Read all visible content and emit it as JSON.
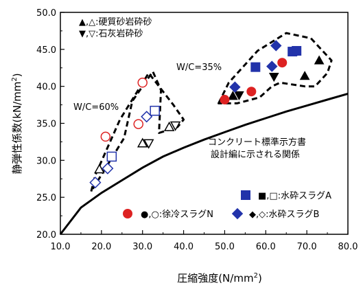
{
  "chart_data": {
    "type": "scatter",
    "xlabel": "圧縮強度(N/mm",
    "xlabel_sup": "2",
    "xlabel_end": ")",
    "ylabel": "静弾性係数(kN/mm",
    "ylabel_sup": "2",
    "ylabel_end": ")",
    "xlim": [
      10.0,
      80.0
    ],
    "ylim": [
      20.0,
      50.0
    ],
    "x_ticks": [
      "10.0",
      "20.0",
      "30.0",
      "40.0",
      "50.0",
      "60.0",
      "70.0",
      "80.0"
    ],
    "y_ticks": [
      "20.0",
      "25.0",
      "30.0",
      "35.0",
      "40.0",
      "45.0",
      "50.0"
    ],
    "legend_top": [
      {
        "text": "▲,△:硬質砂岩砕砂"
      },
      {
        "text": "▼,▽:石灰岩砕砂"
      }
    ],
    "legend_bottom": [
      {
        "text": "■,□:水砕スラグA",
        "color": "#2233aa"
      },
      {
        "text": "●,○:徐冷スラグN",
        "color": "#dd2222"
      },
      {
        "text": "◆,◇:水砕スラグB",
        "color": "#2233aa"
      }
    ],
    "annotations": {
      "wc60": "W/C=60%",
      "wc35": "W/C=35%",
      "standard_line_1": "コンクリート標準示方書",
      "standard_line_2": "設計編に示される関係"
    },
    "colors": {
      "blue": "#2233aa",
      "red": "#dd2222",
      "black": "#000000"
    },
    "series": [
      {
        "marker": "triangle-up",
        "fill": false,
        "color": "#000000",
        "points": [
          [
            19.5,
            28.8
          ],
          [
            30.0,
            32.3
          ],
          [
            36.5,
            34.5
          ]
        ]
      },
      {
        "marker": "triangle-down",
        "fill": false,
        "color": "#000000",
        "points": [
          [
            31.5,
            32.3
          ],
          [
            38.0,
            34.7
          ]
        ]
      },
      {
        "marker": "square",
        "fill": false,
        "color": "#2233aa",
        "points": [
          [
            22.5,
            30.5
          ],
          [
            33.0,
            36.7
          ]
        ]
      },
      {
        "marker": "circle",
        "fill": false,
        "color": "#dd2222",
        "points": [
          [
            21.0,
            33.2
          ],
          [
            29.0,
            34.9
          ],
          [
            30.0,
            40.5
          ]
        ]
      },
      {
        "marker": "diamond",
        "fill": false,
        "color": "#2233aa",
        "points": [
          [
            18.5,
            27.0
          ],
          [
            21.5,
            28.9
          ],
          [
            31.0,
            35.9
          ]
        ]
      },
      {
        "marker": "triangle-up",
        "fill": true,
        "color": "#000000",
        "points": [
          [
            52.0,
            38.7
          ],
          [
            69.5,
            41.4
          ],
          [
            73.0,
            43.5
          ]
        ]
      },
      {
        "marker": "triangle-down",
        "fill": true,
        "color": "#000000",
        "points": [
          [
            53.5,
            38.8
          ],
          [
            62.0,
            41.3
          ]
        ]
      },
      {
        "marker": "square",
        "fill": true,
        "color": "#2233aa",
        "points": [
          [
            57.5,
            42.6
          ],
          [
            66.5,
            44.7
          ],
          [
            67.5,
            44.8
          ]
        ]
      },
      {
        "marker": "circle",
        "fill": true,
        "color": "#dd2222",
        "points": [
          [
            50.0,
            38.2
          ],
          [
            56.5,
            39.3
          ],
          [
            64.0,
            43.2
          ]
        ]
      },
      {
        "marker": "diamond",
        "fill": true,
        "color": "#2233aa",
        "points": [
          [
            52.5,
            39.9
          ],
          [
            61.5,
            42.7
          ],
          [
            62.5,
            45.5
          ]
        ]
      }
    ],
    "standard_curve": {
      "x": [
        10,
        15,
        20,
        25,
        30,
        35,
        40,
        45,
        50,
        55,
        60,
        65,
        70,
        75,
        80
      ],
      "y": [
        20.0,
        23.6,
        25.6,
        27.3,
        29.0,
        30.5,
        31.7,
        32.8,
        33.8,
        34.8,
        35.7,
        36.6,
        37.4,
        38.2,
        39.0
      ]
    },
    "wc60_region": {
      "x": [
        17.5,
        18.5,
        24.5,
        31.5,
        37.5,
        40.0,
        38.5,
        34.0,
        34.5,
        32.5,
        27.5,
        25.5,
        17.5
      ],
      "y": [
        25.8,
        28.0,
        35.5,
        41.8,
        37.5,
        35.5,
        34.5,
        33.7,
        39.5,
        42.0,
        38.0,
        33.0,
        25.8
      ]
    },
    "wc35_region": {
      "x": [
        48.5,
        51.0,
        58.0,
        65.0,
        71.0,
        76.0,
        75.0,
        72.0,
        69.5,
        63.5,
        61.5,
        58.5,
        53.0,
        48.5
      ],
      "y": [
        37.7,
        40.5,
        44.8,
        47.2,
        46.5,
        43.5,
        41.8,
        40.0,
        40.0,
        40.5,
        40.0,
        38.5,
        37.7,
        37.7
      ]
    }
  }
}
